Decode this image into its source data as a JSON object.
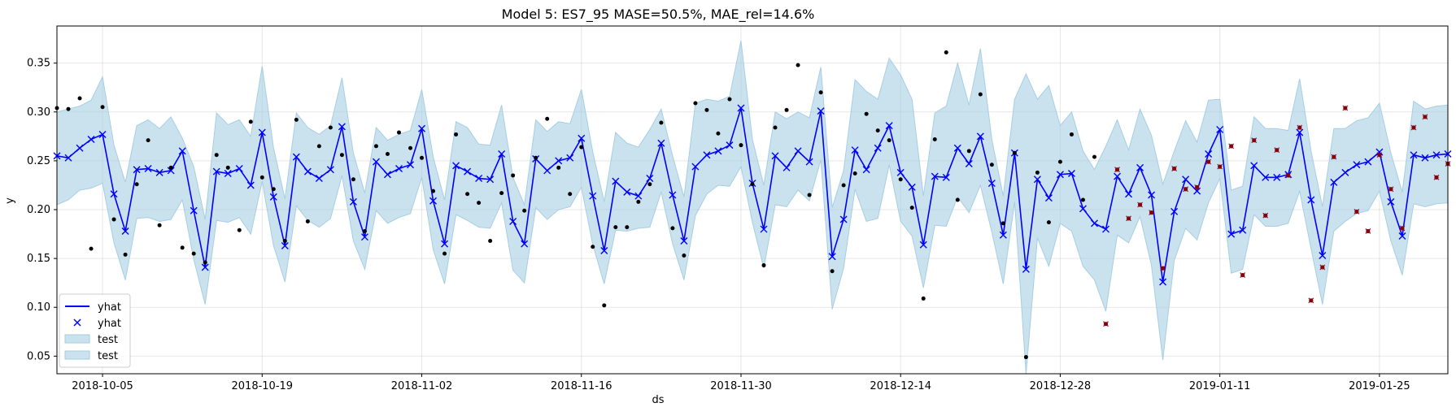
{
  "chart_data": {
    "type": "line",
    "title": "Model 5: ES7_95 MASE=50.5%, MAE_rel=14.6%",
    "xlabel": "ds",
    "ylabel": "y",
    "x_start": "2018-10-01",
    "x_ticks": [
      "2018-10-05",
      "2018-10-19",
      "2018-11-02",
      "2018-11-16",
      "2018-11-30",
      "2018-12-14",
      "2018-12-28",
      "2019-01-11",
      "2019-01-25"
    ],
    "xlim": [
      "2018-10-01",
      "2019-01-31"
    ],
    "ylim": [
      0.032,
      0.388
    ],
    "y_ticks": [
      0.05,
      0.1,
      0.15,
      0.2,
      0.25,
      0.3,
      0.35
    ],
    "grid": true,
    "legend": {
      "location": "lower-left",
      "entries": [
        {
          "label": "yhat",
          "kind": "line"
        },
        {
          "label": "yhat",
          "kind": "marker"
        },
        {
          "label": "test",
          "kind": "band"
        },
        {
          "label": "test",
          "kind": "band"
        }
      ]
    },
    "colors": {
      "forecast": "#0000ff",
      "band": "#a6cee3",
      "actual": "#000000",
      "test_points": "#8b0000"
    },
    "series": [
      {
        "name": "yhat",
        "kind": "line+marker",
        "values": [
          0.255,
          0.253,
          0.263,
          0.272,
          0.277,
          0.216,
          0.178,
          0.241,
          0.242,
          0.238,
          0.24,
          0.26,
          0.199,
          0.141,
          0.239,
          0.237,
          0.242,
          0.225,
          0.279,
          0.213,
          0.163,
          0.254,
          0.239,
          0.232,
          0.241,
          0.285,
          0.208,
          0.172,
          0.249,
          0.236,
          0.242,
          0.246,
          0.283,
          0.209,
          0.165,
          0.245,
          0.239,
          0.232,
          0.231,
          0.257,
          0.188,
          0.165,
          0.252,
          0.24,
          0.25,
          0.253,
          0.273,
          0.214,
          0.158,
          0.229,
          0.218,
          0.214,
          0.232,
          0.268,
          0.215,
          0.168,
          0.244,
          0.256,
          0.26,
          0.266,
          0.304,
          0.227,
          0.18,
          0.255,
          0.243,
          0.26,
          0.249,
          0.301,
          0.152,
          0.19,
          0.261,
          0.241,
          0.263,
          0.286,
          0.238,
          0.223,
          0.164,
          0.234,
          0.233,
          0.263,
          0.247,
          0.275,
          0.227,
          0.174,
          0.258,
          0.139,
          0.231,
          0.212,
          0.236,
          0.237,
          0.201,
          0.186,
          0.18,
          0.234,
          0.216,
          0.243,
          0.215,
          0.126,
          0.198,
          0.231,
          0.219,
          0.257,
          0.282,
          0.175,
          0.179,
          0.245,
          0.233,
          0.233,
          0.236,
          0.279,
          0.21,
          0.153,
          0.228,
          0.238,
          0.246,
          0.249,
          0.259,
          0.208,
          0.173,
          0.256,
          0.253,
          0.256,
          0.257
        ]
      },
      {
        "name": "",
        "kind": "band",
        "of": "yhat",
        "lower": [
          0.205,
          0.21,
          0.22,
          0.222,
          0.227,
          0.166,
          0.128,
          0.191,
          0.192,
          0.188,
          0.19,
          0.21,
          0.149,
          0.103,
          0.189,
          0.187,
          0.192,
          0.175,
          0.229,
          0.163,
          0.126,
          0.204,
          0.189,
          0.182,
          0.191,
          0.235,
          0.168,
          0.139,
          0.199,
          0.186,
          0.192,
          0.196,
          0.233,
          0.159,
          0.124,
          0.195,
          0.189,
          0.182,
          0.181,
          0.207,
          0.138,
          0.125,
          0.202,
          0.19,
          0.2,
          0.203,
          0.223,
          0.164,
          0.124,
          0.179,
          0.178,
          0.181,
          0.182,
          0.218,
          0.165,
          0.128,
          0.194,
          0.216,
          0.225,
          0.224,
          0.244,
          0.187,
          0.14,
          0.205,
          0.203,
          0.22,
          0.209,
          0.251,
          0.098,
          0.14,
          0.221,
          0.188,
          0.191,
          0.246,
          0.188,
          0.173,
          0.12,
          0.184,
          0.183,
          0.213,
          0.197,
          0.225,
          0.177,
          0.124,
          0.208,
          0.032,
          0.171,
          0.142,
          0.186,
          0.178,
          0.142,
          0.128,
          0.096,
          0.174,
          0.166,
          0.193,
          0.143,
          0.046,
          0.148,
          0.181,
          0.169,
          0.207,
          0.232,
          0.135,
          0.139,
          0.195,
          0.183,
          0.183,
          0.186,
          0.219,
          0.16,
          0.103,
          0.178,
          0.188,
          0.196,
          0.199,
          0.219,
          0.168,
          0.133,
          0.206,
          0.203,
          0.206,
          0.207
        ],
        "upper": [
          0.3,
          0.303,
          0.306,
          0.312,
          0.336,
          0.266,
          0.228,
          0.286,
          0.292,
          0.283,
          0.295,
          0.273,
          0.244,
          0.19,
          0.299,
          0.287,
          0.292,
          0.275,
          0.347,
          0.263,
          0.211,
          0.299,
          0.284,
          0.277,
          0.286,
          0.335,
          0.258,
          0.217,
          0.284,
          0.271,
          0.277,
          0.281,
          0.323,
          0.254,
          0.21,
          0.29,
          0.284,
          0.267,
          0.266,
          0.307,
          0.233,
          0.205,
          0.292,
          0.28,
          0.29,
          0.288,
          0.323,
          0.259,
          0.208,
          0.279,
          0.268,
          0.264,
          0.282,
          0.303,
          0.255,
          0.213,
          0.309,
          0.313,
          0.311,
          0.316,
          0.373,
          0.272,
          0.225,
          0.3,
          0.293,
          0.3,
          0.294,
          0.346,
          0.202,
          0.24,
          0.333,
          0.321,
          0.313,
          0.355,
          0.338,
          0.313,
          0.214,
          0.299,
          0.306,
          0.35,
          0.307,
          0.365,
          0.272,
          0.214,
          0.313,
          0.339,
          0.313,
          0.327,
          0.286,
          0.3,
          0.26,
          0.241,
          0.265,
          0.292,
          0.261,
          0.303,
          0.276,
          0.226,
          0.26,
          0.291,
          0.269,
          0.312,
          0.313,
          0.22,
          0.224,
          0.295,
          0.283,
          0.283,
          0.281,
          0.334,
          0.26,
          0.203,
          0.283,
          0.283,
          0.291,
          0.294,
          0.309,
          0.258,
          0.218,
          0.311,
          0.303,
          0.306,
          0.307
        ]
      },
      {
        "name": "actual",
        "kind": "scatter",
        "points": [
          [
            0,
            0.304
          ],
          [
            1,
            0.303
          ],
          [
            2,
            0.314
          ],
          [
            3,
            0.16
          ],
          [
            4,
            0.305
          ],
          [
            5,
            0.19
          ],
          [
            6,
            0.154
          ],
          [
            7,
            0.226
          ],
          [
            8,
            0.271
          ],
          [
            9,
            0.184
          ],
          [
            10,
            0.243
          ],
          [
            11,
            0.161
          ],
          [
            12,
            0.155
          ],
          [
            13,
            0.146
          ],
          [
            14,
            0.256
          ],
          [
            15,
            0.243
          ],
          [
            16,
            0.179
          ],
          [
            17,
            0.29
          ],
          [
            18,
            0.233
          ],
          [
            19,
            0.221
          ],
          [
            20,
            0.168
          ],
          [
            21,
            0.292
          ],
          [
            22,
            0.188
          ],
          [
            23,
            0.265
          ],
          [
            24,
            0.284
          ],
          [
            25,
            0.256
          ],
          [
            26,
            0.231
          ],
          [
            27,
            0.178
          ],
          [
            28,
            0.265
          ],
          [
            29,
            0.257
          ],
          [
            30,
            0.279
          ],
          [
            31,
            0.263
          ],
          [
            32,
            0.253
          ],
          [
            33,
            0.219
          ],
          [
            34,
            0.155
          ],
          [
            35,
            0.277
          ],
          [
            36,
            0.216
          ],
          [
            37,
            0.207
          ],
          [
            38,
            0.168
          ],
          [
            39,
            0.217
          ],
          [
            40,
            0.235
          ],
          [
            41,
            0.199
          ],
          [
            42,
            0.253
          ],
          [
            43,
            0.293
          ],
          [
            44,
            0.243
          ],
          [
            45,
            0.216
          ],
          [
            46,
            0.264
          ],
          [
            47,
            0.162
          ],
          [
            48,
            0.102
          ],
          [
            49,
            0.182
          ],
          [
            50,
            0.182
          ],
          [
            51,
            0.208
          ],
          [
            52,
            0.226
          ],
          [
            53,
            0.289
          ],
          [
            54,
            0.181
          ],
          [
            55,
            0.153
          ],
          [
            56,
            0.309
          ],
          [
            57,
            0.302
          ],
          [
            58,
            0.278
          ],
          [
            59,
            0.313
          ],
          [
            60,
            0.266
          ],
          [
            61,
            0.226
          ],
          [
            62,
            0.143
          ],
          [
            63,
            0.284
          ],
          [
            64,
            0.302
          ],
          [
            65,
            0.348
          ],
          [
            66,
            0.215
          ],
          [
            67,
            0.32
          ],
          [
            68,
            0.137
          ],
          [
            69,
            0.225
          ],
          [
            70,
            0.237
          ],
          [
            71,
            0.298
          ],
          [
            72,
            0.281
          ],
          [
            73,
            0.271
          ],
          [
            74,
            0.231
          ],
          [
            75,
            0.202
          ],
          [
            76,
            0.109
          ],
          [
            77,
            0.272
          ],
          [
            78,
            0.361
          ],
          [
            79,
            0.21
          ],
          [
            80,
            0.26
          ],
          [
            81,
            0.318
          ],
          [
            82,
            0.246
          ],
          [
            83,
            0.186
          ],
          [
            84,
            0.258
          ],
          [
            85,
            0.049
          ],
          [
            86,
            0.238
          ],
          [
            87,
            0.187
          ],
          [
            88,
            0.249
          ],
          [
            89,
            0.277
          ],
          [
            90,
            0.21
          ],
          [
            91,
            0.254
          ]
        ]
      },
      {
        "name": "test_points",
        "kind": "scatter",
        "points": [
          [
            92,
            0.083
          ],
          [
            93,
            0.241
          ],
          [
            94,
            0.191
          ],
          [
            95,
            0.205
          ],
          [
            96,
            0.197
          ],
          [
            97,
            0.14
          ],
          [
            98,
            0.242
          ],
          [
            99,
            0.221
          ],
          [
            100,
            0.223
          ],
          [
            101,
            0.249
          ],
          [
            102,
            0.244
          ],
          [
            103,
            0.265
          ],
          [
            104,
            0.133
          ],
          [
            105,
            0.271
          ],
          [
            106,
            0.194
          ],
          [
            107,
            0.261
          ],
          [
            108,
            0.235
          ],
          [
            109,
            0.284
          ],
          [
            110,
            0.107
          ],
          [
            111,
            0.141
          ],
          [
            112,
            0.254
          ],
          [
            113,
            0.304
          ],
          [
            114,
            0.198
          ],
          [
            115,
            0.178
          ],
          [
            116,
            0.256
          ],
          [
            117,
            0.221
          ],
          [
            118,
            0.181
          ],
          [
            119,
            0.284
          ],
          [
            120,
            0.295
          ],
          [
            121,
            0.233
          ],
          [
            122,
            0.247
          ]
        ]
      }
    ]
  }
}
